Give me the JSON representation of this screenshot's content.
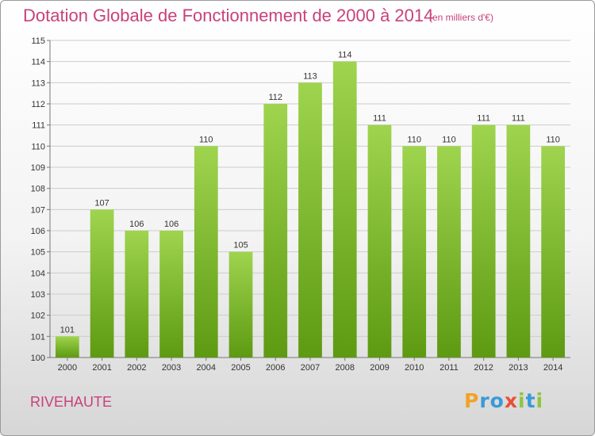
{
  "header": {
    "title": "Dotation Globale de Fonctionnement de 2000 à 2014",
    "subtitle": "(en milliers d'€)"
  },
  "footer": {
    "commune": "RIVEHAUTE",
    "logo_text": "Proxiti"
  },
  "colors": {
    "bar_top": "#9fd44e",
    "bar_bottom": "#5d9a12",
    "title": "#c8417c",
    "grid": "#cccccc"
  },
  "chart_data": {
    "type": "bar",
    "title": "Dotation Globale de Fonctionnement de 2000 à 2014",
    "subtitle": "(en milliers d'€)",
    "xlabel": "",
    "ylabel": "",
    "ylim": [
      100,
      115
    ],
    "yticks": [
      100,
      101,
      102,
      103,
      104,
      105,
      106,
      107,
      108,
      109,
      110,
      111,
      112,
      113,
      114,
      115
    ],
    "ytick_labels": [
      "100",
      "101",
      "102",
      "103",
      "104",
      "105",
      "106",
      "107",
      "108",
      "109",
      "110",
      "111",
      "112",
      "113",
      "114",
      "115"
    ],
    "grid": true,
    "categories": [
      "2000",
      "2001",
      "2002",
      "2003",
      "2004",
      "2005",
      "2006",
      "2007",
      "2008",
      "2009",
      "2010",
      "2011",
      "2012",
      "2013",
      "2014"
    ],
    "values": [
      101,
      107,
      106,
      106,
      110,
      105,
      112,
      113,
      114,
      111,
      110,
      110,
      111,
      111,
      110
    ],
    "value_labels": [
      "101",
      "107",
      "106",
      "106",
      "110",
      "105",
      "112",
      "113",
      "114",
      "111",
      "110",
      "110",
      "111",
      "111",
      "110"
    ]
  }
}
